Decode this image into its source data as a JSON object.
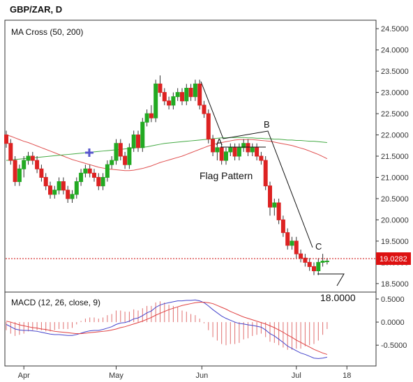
{
  "header": {
    "symbol": "GBP/ZAR, D"
  },
  "price_panel": {
    "indicator_label": "MA Cross (50, 200)",
    "y_ticks": [
      "24.5000",
      "24.0000",
      "23.5000",
      "23.0000",
      "22.5000",
      "22.0000",
      "21.5000",
      "21.0000",
      "20.5000",
      "20.0000",
      "19.5000",
      "19.0000",
      "18.5000"
    ],
    "current_price": "19.0282",
    "target_label": "18.0000"
  },
  "macd_panel": {
    "label": "MACD (12, 26, close, 9)",
    "y_ticks": [
      "0.5000",
      "0.0000",
      "-0.5000"
    ]
  },
  "x_axis": {
    "ticks": [
      "Apr",
      "May",
      "Jun",
      "Jul",
      "18"
    ]
  },
  "annotations": {
    "flag_pattern": "Flag Pattern",
    "point_a": "A",
    "point_b": "B",
    "point_c": "C"
  },
  "colors": {
    "up": "#22aa22",
    "down": "#dd2222",
    "ma_fast": "#e05050",
    "ma_slow": "#44aa44",
    "macd": "#4444cc",
    "signal": "#e04040",
    "price_line": "#cc0000",
    "marker": "#5555cc"
  },
  "chart_data": [
    {
      "type": "candlestick",
      "title": "GBP/ZAR, D",
      "ylim": [
        18.3,
        24.7
      ],
      "dates": [
        "2018-03-26",
        "2018-03-27",
        "2018-03-28",
        "2018-03-29",
        "2018-04-02",
        "2018-04-03",
        "2018-04-04",
        "2018-04-05",
        "2018-04-06",
        "2018-04-09",
        "2018-04-10",
        "2018-04-11",
        "2018-04-12",
        "2018-04-13",
        "2018-04-16",
        "2018-04-17",
        "2018-04-18",
        "2018-04-19",
        "2018-04-20",
        "2018-04-23",
        "2018-04-24",
        "2018-04-25",
        "2018-04-26",
        "2018-04-27",
        "2018-04-30",
        "2018-05-01",
        "2018-05-02",
        "2018-05-03",
        "2018-05-04",
        "2018-05-07",
        "2018-05-08",
        "2018-05-09",
        "2018-05-10",
        "2018-05-11",
        "2018-05-14",
        "2018-05-15",
        "2018-05-16",
        "2018-05-17",
        "2018-05-18",
        "2018-05-21",
        "2018-05-22",
        "2018-05-23",
        "2018-05-24",
        "2018-05-25",
        "2018-05-28",
        "2018-05-29",
        "2018-05-30",
        "2018-05-31",
        "2018-06-01",
        "2018-06-04",
        "2018-06-05",
        "2018-06-06",
        "2018-06-07",
        "2018-06-08",
        "2018-06-11",
        "2018-06-12",
        "2018-06-13",
        "2018-06-14",
        "2018-06-15",
        "2018-06-18",
        "2018-06-19",
        "2018-06-20",
        "2018-06-21",
        "2018-06-22",
        "2018-06-25",
        "2018-06-26",
        "2018-06-27",
        "2018-06-28",
        "2018-06-29",
        "2018-07-02",
        "2018-07-03",
        "2018-07-04",
        "2018-07-05",
        "2018-07-06"
      ],
      "ohlc": [
        [
          22.0,
          22.1,
          21.7,
          21.8
        ],
        [
          21.8,
          21.9,
          21.3,
          21.4
        ],
        [
          21.4,
          21.5,
          20.8,
          20.9
        ],
        [
          20.9,
          21.3,
          20.8,
          21.2
        ],
        [
          21.2,
          21.5,
          21.0,
          21.4
        ],
        [
          21.4,
          21.6,
          21.3,
          21.5
        ],
        [
          21.5,
          21.6,
          21.3,
          21.4
        ],
        [
          21.4,
          21.5,
          21.1,
          21.2
        ],
        [
          21.2,
          21.3,
          20.9,
          21.0
        ],
        [
          21.0,
          21.1,
          20.7,
          20.8
        ],
        [
          20.8,
          20.9,
          20.5,
          20.6
        ],
        [
          20.6,
          20.8,
          20.5,
          20.7
        ],
        [
          20.7,
          21.0,
          20.6,
          20.9
        ],
        [
          20.9,
          21.0,
          20.6,
          20.7
        ],
        [
          20.7,
          20.8,
          20.4,
          20.5
        ],
        [
          20.5,
          20.7,
          20.4,
          20.6
        ],
        [
          20.6,
          21.0,
          20.5,
          20.9
        ],
        [
          20.9,
          21.2,
          20.8,
          21.1
        ],
        [
          21.1,
          21.3,
          21.0,
          21.2
        ],
        [
          21.2,
          21.3,
          21.0,
          21.1
        ],
        [
          21.1,
          21.2,
          20.9,
          21.0
        ],
        [
          21.0,
          21.1,
          20.7,
          20.8
        ],
        [
          20.8,
          21.1,
          20.7,
          21.0
        ],
        [
          21.0,
          21.4,
          20.9,
          21.3
        ],
        [
          21.3,
          21.5,
          21.2,
          21.4
        ],
        [
          21.4,
          21.9,
          21.3,
          21.8
        ],
        [
          21.8,
          21.9,
          21.4,
          21.5
        ],
        [
          21.5,
          21.6,
          21.2,
          21.3
        ],
        [
          21.3,
          21.8,
          21.2,
          21.7
        ],
        [
          21.7,
          22.1,
          21.6,
          22.0
        ],
        [
          22.0,
          22.1,
          21.6,
          21.7
        ],
        [
          21.7,
          22.4,
          21.6,
          22.3
        ],
        [
          22.3,
          22.6,
          22.2,
          22.5
        ],
        [
          22.5,
          22.7,
          22.3,
          22.4
        ],
        [
          22.4,
          23.3,
          22.3,
          23.2
        ],
        [
          23.2,
          23.4,
          22.9,
          23.0
        ],
        [
          23.0,
          23.1,
          22.7,
          22.8
        ],
        [
          22.8,
          22.9,
          22.6,
          22.7
        ],
        [
          22.7,
          23.0,
          22.6,
          22.9
        ],
        [
          22.9,
          23.1,
          22.8,
          23.0
        ],
        [
          23.0,
          23.1,
          22.7,
          22.8
        ],
        [
          22.8,
          23.2,
          22.7,
          23.1
        ],
        [
          23.1,
          23.2,
          22.8,
          22.9
        ],
        [
          22.9,
          23.3,
          22.8,
          23.2
        ],
        [
          23.2,
          23.3,
          22.6,
          22.7
        ],
        [
          22.7,
          22.8,
          22.4,
          22.5
        ],
        [
          22.5,
          22.6,
          21.8,
          21.9
        ],
        [
          21.9,
          22.0,
          21.5,
          21.6
        ],
        [
          21.6,
          21.8,
          21.4,
          21.7
        ],
        [
          21.7,
          21.8,
          21.3,
          21.4
        ],
        [
          21.4,
          21.7,
          21.3,
          21.6
        ],
        [
          21.6,
          21.8,
          21.5,
          21.7
        ],
        [
          21.7,
          21.8,
          21.4,
          21.5
        ],
        [
          21.5,
          21.8,
          21.4,
          21.7
        ],
        [
          21.7,
          21.9,
          21.6,
          21.8
        ],
        [
          21.8,
          21.9,
          21.5,
          21.6
        ],
        [
          21.6,
          21.8,
          21.5,
          21.7
        ],
        [
          21.7,
          21.8,
          21.4,
          21.5
        ],
        [
          21.5,
          21.6,
          21.3,
          21.4
        ],
        [
          21.4,
          21.5,
          20.7,
          20.8
        ],
        [
          20.8,
          20.9,
          20.1,
          20.3
        ],
        [
          20.3,
          20.5,
          20.1,
          20.4
        ],
        [
          20.4,
          20.5,
          19.9,
          20.0
        ],
        [
          20.0,
          20.1,
          19.6,
          19.7
        ],
        [
          19.7,
          19.8,
          19.3,
          19.4
        ],
        [
          19.4,
          19.6,
          19.3,
          19.5
        ],
        [
          19.5,
          19.6,
          19.1,
          19.2
        ],
        [
          19.2,
          19.3,
          19.0,
          19.1
        ],
        [
          19.1,
          19.2,
          18.9,
          19.0
        ],
        [
          19.0,
          19.1,
          18.8,
          18.9
        ],
        [
          18.9,
          19.0,
          18.7,
          18.8
        ],
        [
          18.8,
          19.1,
          18.7,
          19.0
        ],
        [
          19.0,
          19.2,
          18.9,
          19.03
        ],
        [
          19.03,
          19.1,
          18.95,
          19.03
        ]
      ],
      "series": [
        {
          "name": "MA 50",
          "values": [
            22.0,
            21.97,
            21.93,
            21.89,
            21.85,
            21.82,
            21.78,
            21.74,
            21.7,
            21.66,
            21.62,
            21.58,
            21.54,
            21.5,
            21.46,
            21.42,
            21.39,
            21.36,
            21.33,
            21.3,
            21.27,
            21.24,
            21.22,
            21.2,
            21.19,
            21.18,
            21.17,
            21.16,
            21.16,
            21.17,
            21.19,
            21.21,
            21.24,
            21.27,
            21.31,
            21.35,
            21.38,
            21.41,
            21.44,
            21.47,
            21.5,
            21.54,
            21.58,
            21.62,
            21.66,
            21.7,
            21.74,
            21.77,
            21.8,
            21.82,
            21.84,
            21.86,
            21.88,
            21.89,
            21.89,
            21.89,
            21.89,
            21.88,
            21.87,
            21.86,
            21.85,
            21.83,
            21.81,
            21.79,
            21.77,
            21.75,
            21.72,
            21.69,
            21.66,
            21.62,
            21.58,
            21.54,
            21.49,
            21.44
          ]
        },
        {
          "name": "MA 200",
          "values": [
            21.4,
            21.41,
            21.42,
            21.43,
            21.44,
            21.45,
            21.46,
            21.47,
            21.48,
            21.49,
            21.5,
            21.51,
            21.52,
            21.53,
            21.54,
            21.55,
            21.56,
            21.57,
            21.58,
            21.59,
            21.6,
            21.61,
            21.62,
            21.63,
            21.64,
            21.65,
            21.66,
            21.67,
            21.68,
            21.69,
            21.7,
            21.71,
            21.72,
            21.74,
            21.76,
            21.78,
            21.8,
            21.81,
            21.82,
            21.83,
            21.84,
            21.85,
            21.86,
            21.87,
            21.88,
            21.89,
            21.9,
            21.91,
            21.92,
            21.93,
            21.93,
            21.94,
            21.94,
            21.94,
            21.94,
            21.93,
            21.93,
            21.92,
            21.92,
            21.91,
            21.91,
            21.9,
            21.9,
            21.89,
            21.88,
            21.88,
            21.87,
            21.87,
            21.86,
            21.85,
            21.85,
            21.84,
            21.83,
            21.82
          ]
        }
      ]
    },
    {
      "type": "line",
      "title": "MACD (12, 26, close, 9)",
      "ylim": [
        -0.95,
        0.65
      ],
      "series": [
        {
          "name": "MACD",
          "values": [
            -0.05,
            -0.1,
            -0.15,
            -0.17,
            -0.18,
            -0.18,
            -0.19,
            -0.2,
            -0.22,
            -0.24,
            -0.26,
            -0.27,
            -0.27,
            -0.28,
            -0.29,
            -0.29,
            -0.27,
            -0.24,
            -0.21,
            -0.19,
            -0.18,
            -0.18,
            -0.16,
            -0.13,
            -0.1,
            -0.05,
            -0.02,
            -0.01,
            0.02,
            0.07,
            0.09,
            0.14,
            0.2,
            0.24,
            0.32,
            0.37,
            0.4,
            0.42,
            0.44,
            0.46,
            0.46,
            0.47,
            0.47,
            0.48,
            0.46,
            0.42,
            0.35,
            0.27,
            0.2,
            0.13,
            0.08,
            0.04,
            0.0,
            -0.03,
            -0.04,
            -0.06,
            -0.07,
            -0.09,
            -0.11,
            -0.17,
            -0.25,
            -0.3,
            -0.37,
            -0.44,
            -0.52,
            -0.57,
            -0.62,
            -0.67,
            -0.7,
            -0.74,
            -0.78,
            -0.79,
            -0.78,
            -0.76
          ]
        },
        {
          "name": "Signal",
          "values": [
            0.02,
            0.0,
            -0.03,
            -0.06,
            -0.08,
            -0.1,
            -0.12,
            -0.13,
            -0.15,
            -0.16,
            -0.18,
            -0.2,
            -0.21,
            -0.22,
            -0.23,
            -0.24,
            -0.25,
            -0.25,
            -0.24,
            -0.23,
            -0.22,
            -0.21,
            -0.2,
            -0.19,
            -0.17,
            -0.15,
            -0.12,
            -0.1,
            -0.07,
            -0.04,
            -0.01,
            0.02,
            0.06,
            0.1,
            0.15,
            0.19,
            0.23,
            0.27,
            0.3,
            0.33,
            0.36,
            0.38,
            0.4,
            0.42,
            0.43,
            0.43,
            0.42,
            0.4,
            0.36,
            0.32,
            0.28,
            0.23,
            0.19,
            0.15,
            0.11,
            0.08,
            0.05,
            0.02,
            -0.01,
            -0.04,
            -0.08,
            -0.12,
            -0.17,
            -0.22,
            -0.28,
            -0.33,
            -0.39,
            -0.44,
            -0.49,
            -0.54,
            -0.59,
            -0.63,
            -0.67,
            -0.7
          ]
        }
      ]
    }
  ]
}
